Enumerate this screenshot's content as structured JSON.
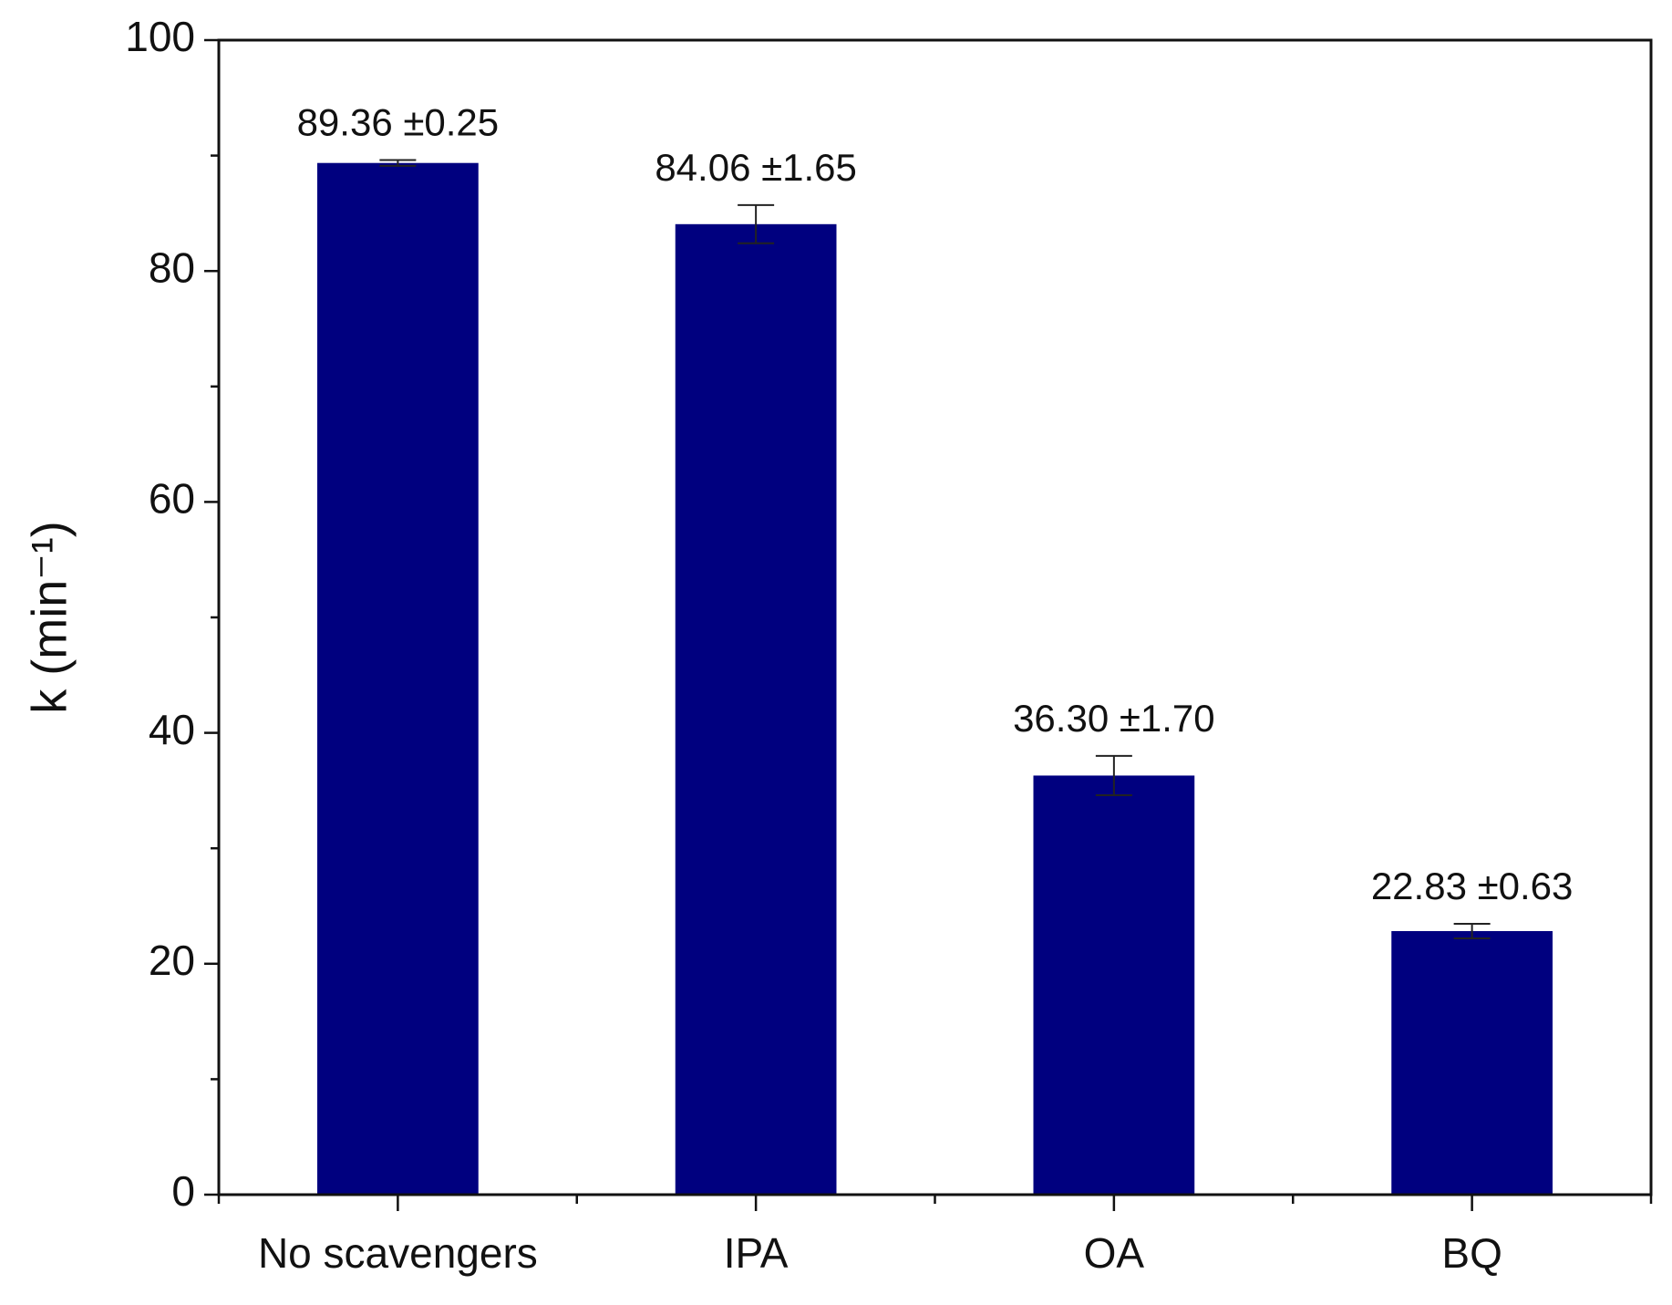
{
  "chart_data": {
    "type": "bar",
    "y_label": "k (min⁻¹)",
    "categories": [
      "No scavengers",
      "IPA",
      "OA",
      "BQ"
    ],
    "values": [
      89.36,
      84.06,
      36.3,
      22.83
    ],
    "errors": [
      0.25,
      1.65,
      1.7,
      0.63
    ],
    "value_labels": [
      "89.36 ±0.25",
      "84.06 ±1.65",
      "36.30 ±1.70",
      "22.83 ±0.63"
    ],
    "color": "#00007f",
    "ylim": [
      0,
      100
    ],
    "yticks": [
      0,
      20,
      40,
      60,
      80,
      100
    ],
    "minor_yticks": [
      10,
      30,
      50,
      70,
      90
    ],
    "grid": false
  }
}
